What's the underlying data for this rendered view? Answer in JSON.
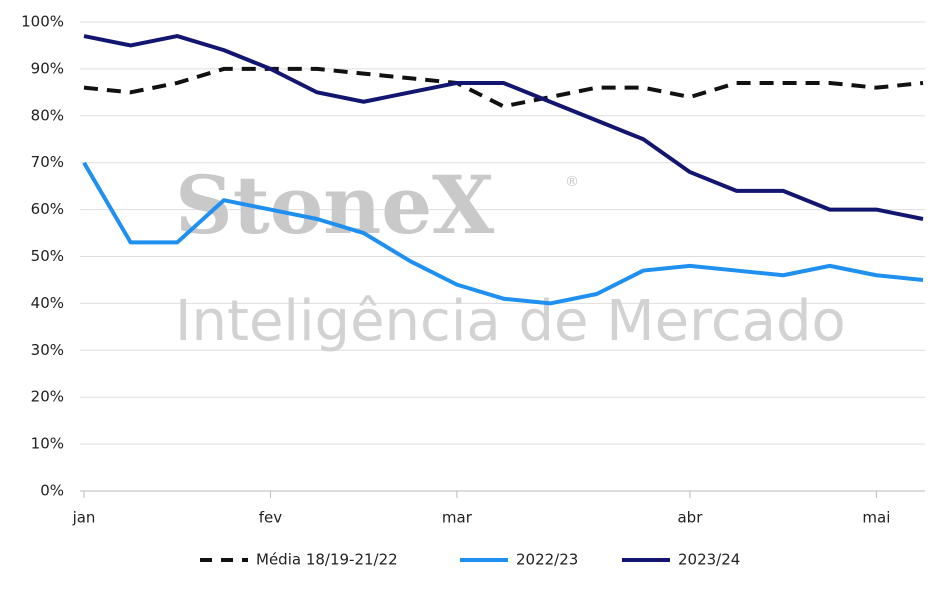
{
  "chart_data": {
    "type": "line",
    "watermark": {
      "brand": "StoneX",
      "mark": "®",
      "tagline": "Inteligência de Mercado"
    },
    "categories": [
      "jan",
      null,
      null,
      null,
      "fev",
      null,
      null,
      null,
      "mar",
      null,
      null,
      null,
      null,
      "abr",
      null,
      null,
      null,
      "mai",
      null
    ],
    "ylim": [
      0,
      100
    ],
    "yticks": [
      {
        "value": 0,
        "label": "0%"
      },
      {
        "value": 10,
        "label": "10%"
      },
      {
        "value": 20,
        "label": "20%"
      },
      {
        "value": 30,
        "label": "30%"
      },
      {
        "value": 40,
        "label": "40%"
      },
      {
        "value": 50,
        "label": "50%"
      },
      {
        "value": 60,
        "label": "60%"
      },
      {
        "value": 70,
        "label": "70%"
      },
      {
        "value": 80,
        "label": "80%"
      },
      {
        "value": 90,
        "label": "90%"
      },
      {
        "value": 100,
        "label": "100%"
      }
    ],
    "grid": true,
    "legend": "bottom",
    "series": [
      {
        "name": "Média 18/19-21/22",
        "color": "#111111",
        "dashed": true,
        "values": [
          86,
          85,
          87,
          90,
          90,
          90,
          89,
          88,
          87,
          82,
          84,
          86,
          86,
          84,
          87,
          87,
          87,
          86,
          87
        ]
      },
      {
        "name": "2022/23",
        "color": "#1f8ff0",
        "dashed": false,
        "values": [
          70,
          53,
          53,
          62,
          60,
          58,
          55,
          49,
          44,
          41,
          40,
          42,
          47,
          48,
          47,
          46,
          48,
          46,
          45
        ]
      },
      {
        "name": "2023/24",
        "color": "#121670",
        "dashed": false,
        "values": [
          97,
          95,
          97,
          94,
          90,
          85,
          83,
          85,
          87,
          87,
          83,
          79,
          75,
          68,
          64,
          64,
          60,
          60,
          58
        ]
      }
    ]
  }
}
